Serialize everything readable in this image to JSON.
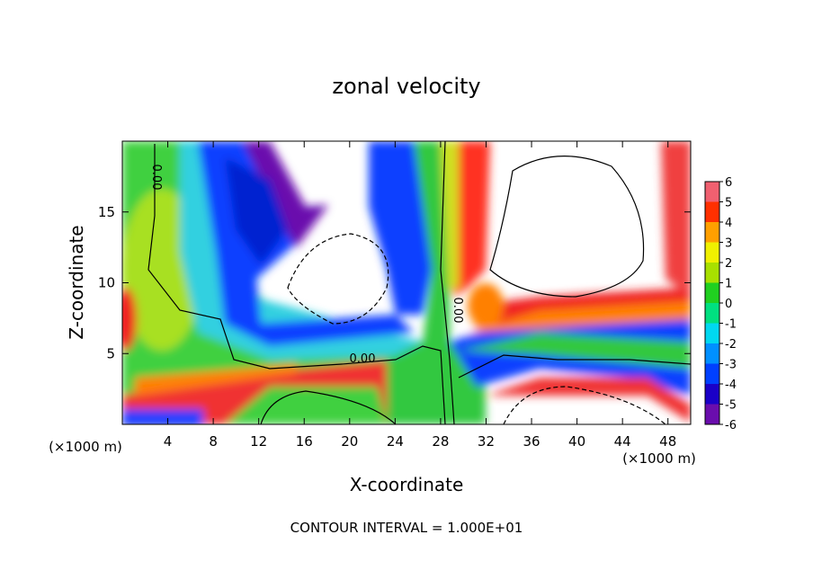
{
  "chart_data": {
    "type": "contour",
    "title": "zonal velocity",
    "x_label": "X-coordinate",
    "y_label": "Z-coordinate",
    "y_unit": "(×1000 m)",
    "x_unit": "(×1000 m)",
    "xlim": [
      0,
      50
    ],
    "ylim": [
      0,
      20
    ],
    "xticks": [
      4,
      8,
      12,
      16,
      20,
      24,
      28,
      32,
      36,
      40,
      44,
      48
    ],
    "yticks": [
      5,
      10,
      15
    ],
    "contour_labels": [
      "0.00",
      "0.00",
      "0.00"
    ],
    "colorbar": {
      "levels": [
        -6,
        -5,
        -4,
        -3,
        -2,
        -1,
        0,
        1,
        2,
        3,
        4,
        5,
        6
      ],
      "colors": [
        "#6a0dad",
        "#1a00c8",
        "#0040ff",
        "#0090ff",
        "#00d8f0",
        "#00e080",
        "#20d020",
        "#a8e000",
        "#f0f000",
        "#ffa000",
        "#ff3000",
        "#f06070"
      ]
    },
    "footer": "CONTOUR INTERVAL = 1.000E+01"
  }
}
